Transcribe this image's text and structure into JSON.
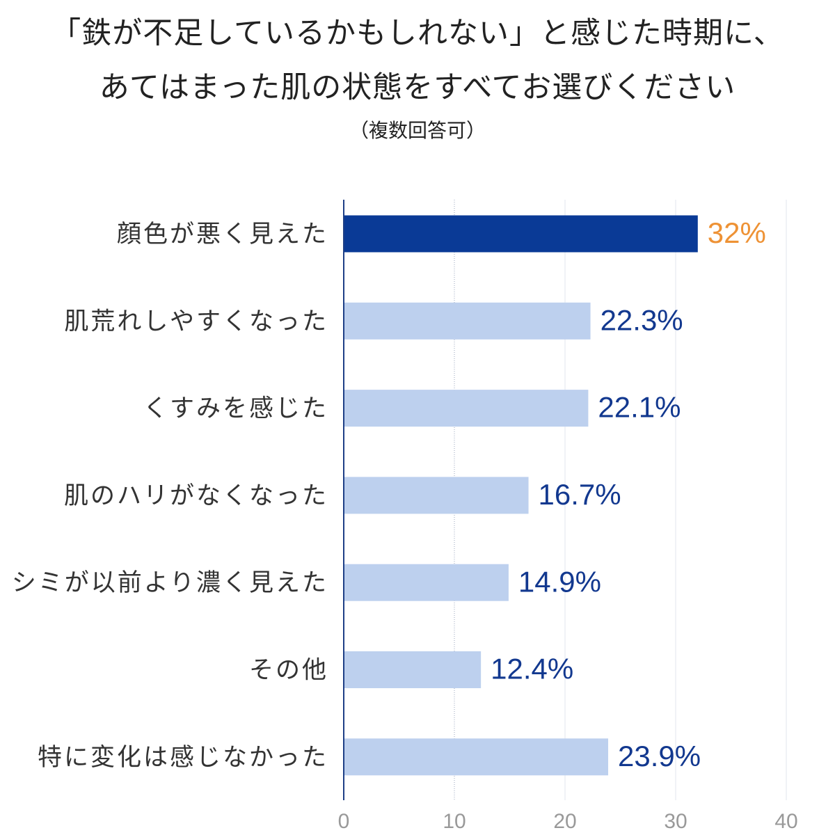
{
  "title_line1": "「鉄が不足しているかもしれない」と感じた時期に、",
  "title_line2": "あてはまった肌の状態をすべてお選びください",
  "subtitle": "（複数回答可）",
  "colors": {
    "highlight_bar": "#0a3a96",
    "bar": "#bdd0ee",
    "highlight_label": "#ee9235",
    "value_label": "#12388f",
    "axis": "#1e3f86",
    "grid": "#e2e6ee",
    "category_text": "#333333",
    "tick_text": "#999999"
  },
  "chart_data": {
    "type": "bar",
    "orientation": "horizontal",
    "categories": [
      "顔色が悪く見えた",
      "肌荒れしやすくなった",
      "くすみを感じた",
      "肌のハリがなくなった",
      "シミが以前より濃く見えた",
      "その他",
      "特に変化は感じなかった"
    ],
    "values": [
      32,
      22.3,
      22.1,
      16.7,
      14.9,
      12.4,
      23.9
    ],
    "value_labels": [
      "32%",
      "22.3%",
      "22.1%",
      "16.7%",
      "14.9%",
      "12.4%",
      "23.9%"
    ],
    "highlight_index": 0,
    "xlim": [
      0,
      40
    ],
    "x_ticks": [
      0,
      10,
      20,
      30,
      40
    ],
    "x_tick_labels": [
      "0",
      "10",
      "20",
      "30",
      "40"
    ],
    "grid": true,
    "legend": false
  }
}
